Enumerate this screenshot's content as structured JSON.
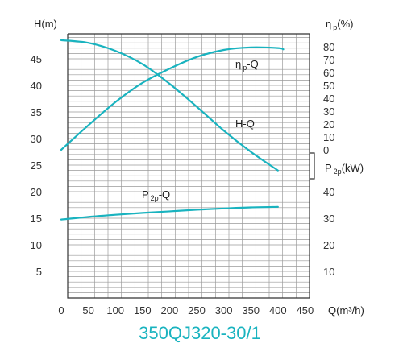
{
  "chart_data": {
    "type": "line",
    "model_title": "350QJ320-30/1",
    "xlabel": "Q(m³/h)",
    "ylabel_left": "H(m)",
    "eta_axis_label": {
      "main": "η",
      "sub": "p",
      "rest": "(%)"
    },
    "power_axis_label": {
      "main": "P",
      "sub": "2p",
      "rest": "(kW)"
    },
    "xlim": [
      0,
      450
    ],
    "x_ticks": [
      "0",
      "50",
      "100",
      "150",
      "200",
      "250",
      "300",
      "350",
      "400",
      "450"
    ],
    "x_tick_values": [
      0,
      50,
      100,
      150,
      200,
      250,
      300,
      350,
      400,
      450
    ],
    "h_ylim": [
      0,
      49
    ],
    "h_ticks": [
      "5",
      "10",
      "15",
      "20",
      "25",
      "30",
      "35",
      "40",
      "45"
    ],
    "h_tick_values": [
      5,
      10,
      15,
      20,
      25,
      30,
      35,
      40,
      45
    ],
    "eta_range": [
      0,
      80
    ],
    "eta_ticks": [
      "0",
      "10",
      "20",
      "30",
      "40",
      "50",
      "60",
      "70",
      "80"
    ],
    "eta_tick_values": [
      0,
      10,
      20,
      30,
      40,
      50,
      60,
      70,
      80
    ],
    "power_range": [
      0,
      49
    ],
    "power_ticks": [
      "10",
      "20",
      "30",
      "40"
    ],
    "power_tick_values": [
      10,
      20,
      30,
      40
    ],
    "grid": true,
    "curve_color": "#19b3bf",
    "series": [
      {
        "label": {
          "main": "H",
          "sub": "",
          "rest": "-Q"
        },
        "axis": "head",
        "x": [
          0,
          50,
          100,
          150,
          200,
          250,
          300,
          350,
          400
        ],
        "y": [
          48.5,
          48.0,
          46.5,
          44.0,
          40.3,
          36.0,
          31.5,
          27.5,
          24.0
        ]
      },
      {
        "label": {
          "main": "η",
          "sub": "p",
          "rest": "-Q"
        },
        "axis": "eta",
        "x": [
          0,
          50,
          100,
          150,
          200,
          250,
          300,
          350,
          400,
          410
        ],
        "y": [
          0,
          19,
          37,
          52,
          63,
          72,
          77.5,
          79.5,
          79.0,
          78.0
        ]
      },
      {
        "label": {
          "main": "P",
          "sub": "2p",
          "rest": "-Q"
        },
        "axis": "power",
        "x": [
          0,
          50,
          100,
          150,
          200,
          250,
          300,
          350,
          400
        ],
        "y": [
          29.5,
          30.5,
          31.3,
          32.0,
          32.6,
          33.2,
          33.7,
          34.1,
          34.3
        ]
      }
    ]
  }
}
